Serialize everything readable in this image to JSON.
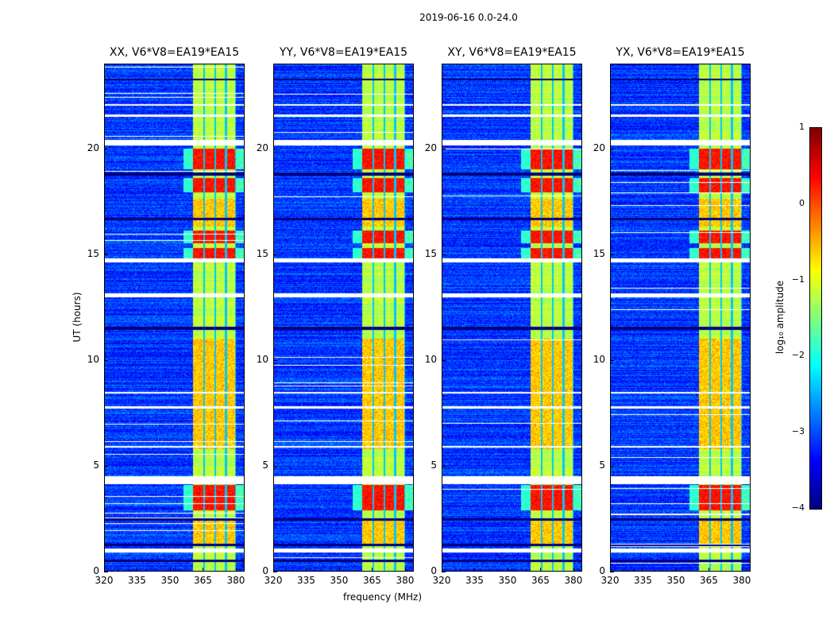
{
  "chart_data": {
    "type": "heatmap",
    "title": "2019-06-16 0.0-24.0",
    "xlabel": "frequency (MHz)",
    "ylabel": "UT (hours)",
    "xlim": [
      320,
      384
    ],
    "ylim": [
      0,
      24
    ],
    "xticks": [
      "320",
      "335",
      "350",
      "365",
      "380"
    ],
    "xtick_values": [
      320,
      335,
      350,
      365,
      380
    ],
    "yticks": [
      "0",
      "5",
      "10",
      "15",
      "20"
    ],
    "ytick_values": [
      0,
      5,
      10,
      15,
      20
    ],
    "panels": [
      {
        "title": "XX, V6*V8=EA19*EA15"
      },
      {
        "title": "YY, V6*V8=EA19*EA15"
      },
      {
        "title": "XY, V6*V8=EA19*EA15"
      },
      {
        "title": "YX, V6*V8=EA19*EA15"
      }
    ],
    "colorbar": {
      "label": "log₁₀ amplitude",
      "range": [
        -4,
        1
      ],
      "ticks": [
        "1",
        "0",
        "−1",
        "−2",
        "−3",
        "−4"
      ],
      "tick_values": [
        1,
        0,
        -1,
        -2,
        -3,
        -4
      ],
      "colormap": "jet"
    },
    "structure": {
      "background_log_amp": -3.1,
      "band_mhz": [
        360.5,
        380
      ],
      "band_log_amp": -1.2,
      "channel_edges_mhz": [
        365.5,
        370.5,
        375.5,
        380
      ],
      "strong_hours": [
        [
          2.9,
          4.1
        ],
        [
          14.8,
          15.3
        ],
        [
          15.5,
          16.1
        ],
        [
          17.9,
          18.6
        ],
        [
          19.0,
          20.0
        ]
      ],
      "medium_hours": [
        [
          1.3,
          2.5
        ],
        [
          5.8,
          11.0
        ],
        [
          16.3,
          17.6
        ]
      ],
      "flagged_hours": [
        [
          0.9,
          1.1
        ],
        [
          4.15,
          4.5
        ],
        [
          5.85,
          5.95
        ],
        [
          7.7,
          7.8
        ],
        [
          8.4,
          8.5
        ],
        [
          12.95,
          13.15
        ],
        [
          14.6,
          14.8
        ],
        [
          20.15,
          20.4
        ],
        [
          21.5,
          21.6
        ],
        [
          22.0,
          22.1
        ]
      ],
      "dark_hours": [
        [
          0.45,
          0.55
        ],
        [
          1.2,
          1.3
        ],
        [
          2.4,
          2.5
        ],
        [
          11.4,
          11.55
        ],
        [
          16.6,
          16.7
        ],
        [
          18.7,
          18.85
        ],
        [
          23.2,
          23.3
        ]
      ]
    }
  }
}
